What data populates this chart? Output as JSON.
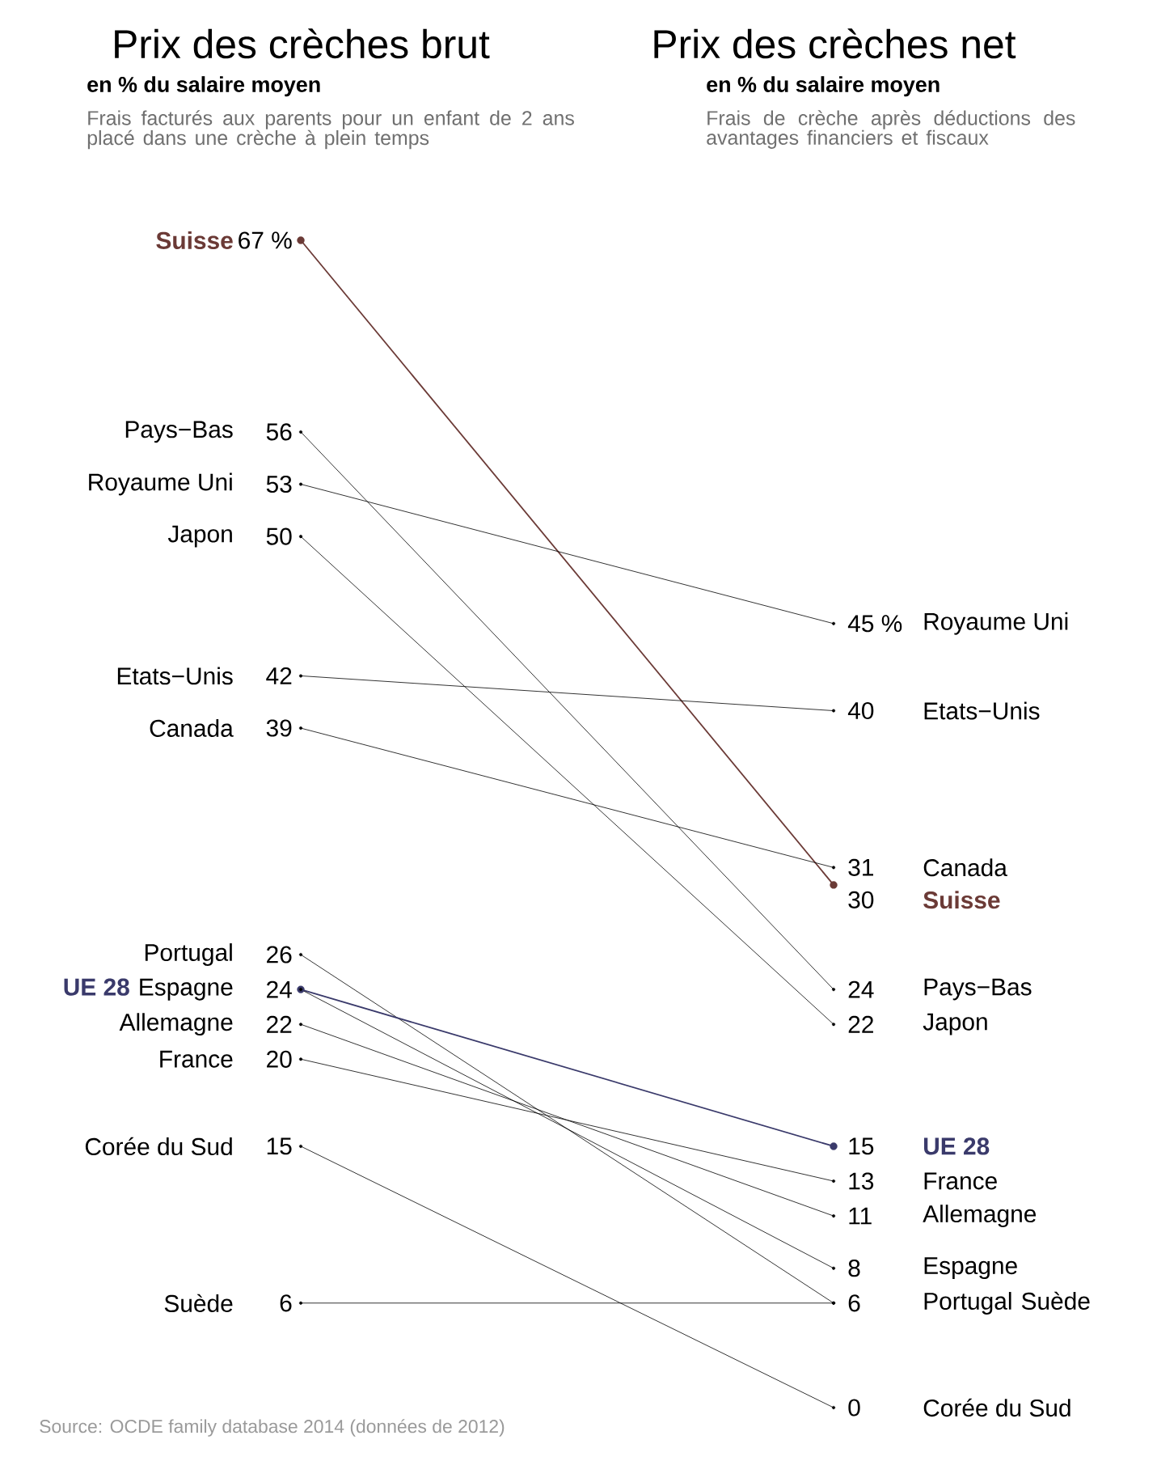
{
  "chart_data": {
    "type": "line",
    "categories": [
      "Prix des crèches brut",
      "Prix des crèches net"
    ],
    "annotations": [
      "en % du salaire moyen",
      "Frais facturés aux parents pour un enfant de 2 ans placé dans une crèche à plein temps",
      "en % du salaire moyen",
      "Frais de crèche après déductions des avantages financiers et fiscaux",
      "Source: OCDE family database 2014 (données de 2012)"
    ],
    "series": [
      {
        "name": "Suisse",
        "color": "#6b3a36",
        "values": [
          67,
          30
        ],
        "value_labels": [
          "67 %",
          "30"
        ]
      },
      {
        "name": "Pays−Bas",
        "color": "#000000",
        "values": [
          56,
          24
        ],
        "value_labels": [
          "56",
          "24"
        ]
      },
      {
        "name": "Royaume Uni",
        "color": "#000000",
        "values": [
          53,
          45
        ],
        "value_labels": [
          "53",
          "45 %"
        ]
      },
      {
        "name": "Japon",
        "color": "#000000",
        "values": [
          50,
          22
        ],
        "value_labels": [
          "50",
          "22"
        ]
      },
      {
        "name": "Etats−Unis",
        "color": "#000000",
        "values": [
          42,
          40
        ],
        "value_labels": [
          "42",
          "40"
        ]
      },
      {
        "name": "Canada",
        "color": "#000000",
        "values": [
          39,
          31
        ],
        "value_labels": [
          "39",
          "31"
        ]
      },
      {
        "name": "Portugal",
        "color": "#000000",
        "values": [
          26,
          6
        ],
        "value_labels": [
          "26",
          "6"
        ]
      },
      {
        "name": "UE 28",
        "color": "#3a3a6b",
        "values": [
          24,
          15
        ],
        "value_labels": [
          null,
          "15"
        ]
      },
      {
        "name": "Espagne",
        "color": "#000000",
        "values": [
          24,
          8
        ],
        "value_labels": [
          "24",
          "8"
        ]
      },
      {
        "name": "Allemagne",
        "color": "#000000",
        "values": [
          22,
          11
        ],
        "value_labels": [
          "22",
          "11"
        ]
      },
      {
        "name": "France",
        "color": "#000000",
        "values": [
          20,
          13
        ],
        "value_labels": [
          "20",
          "13"
        ]
      },
      {
        "name": "Corée du Sud",
        "color": "#000000",
        "values": [
          15,
          0
        ],
        "value_labels": [
          "15",
          "0"
        ]
      },
      {
        "name": "Suède",
        "color": "#000000",
        "values": [
          6,
          6
        ],
        "value_labels": [
          "6",
          null
        ]
      }
    ],
    "marker": "circle",
    "line_style": "solid",
    "tick_labels": "x"
  }
}
